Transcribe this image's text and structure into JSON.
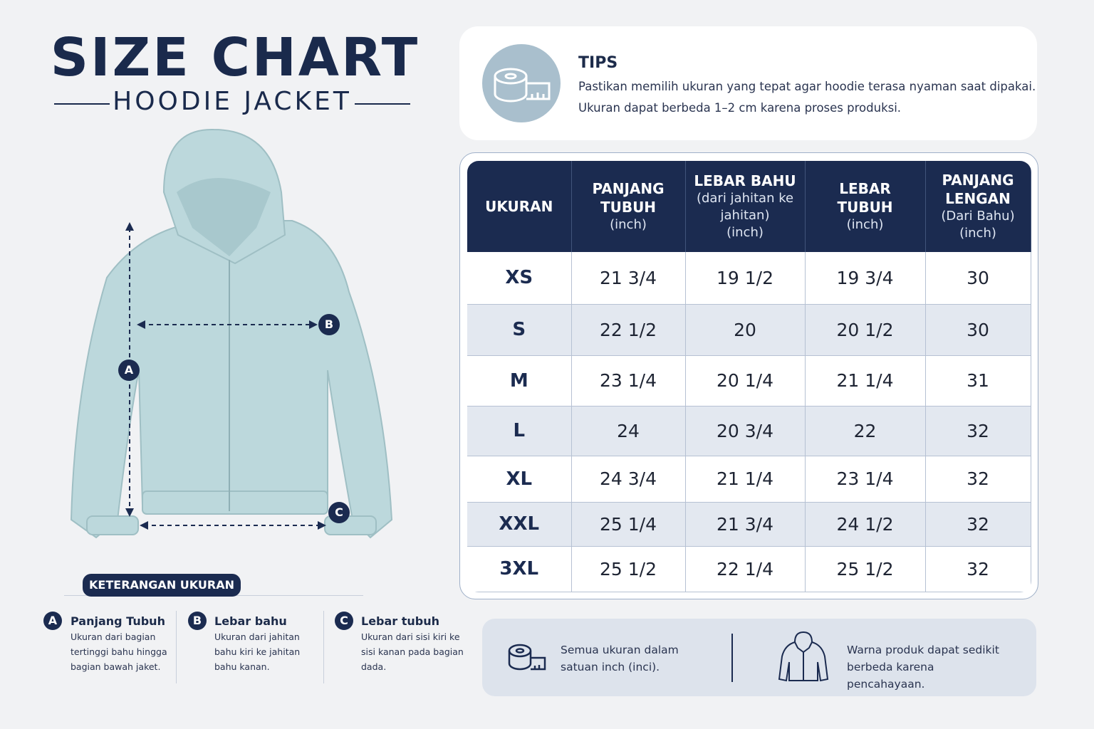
{
  "header": {
    "title": "SIZE CHART",
    "subtitle": "HOODIE JACKET"
  },
  "tips": {
    "title": "TIPS",
    "lines": [
      "Pastikan memilih ukuran yang tepat agar hoodie terasa nyaman saat dipakai.",
      "Ukuran dapat berbeda 1–2 cm karena proses produksi."
    ]
  },
  "table": {
    "headers": [
      {
        "title": "UKURAN",
        "notes": []
      },
      {
        "title": "PANJANG TUBUH",
        "notes": [
          "(inch)"
        ]
      },
      {
        "title": "LEBAR BAHU",
        "notes": [
          "(dari jahitan ke jahitan)",
          "(inch)"
        ]
      },
      {
        "title": "LEBAR TUBUH",
        "notes": [
          "(inch)"
        ]
      },
      {
        "title": "PANJANG LENGAN",
        "notes": [
          "(Dari Bahu)",
          "(inch)"
        ]
      }
    ],
    "rows": [
      [
        "XS",
        "21 3/4",
        "19 1/2",
        "19 3/4",
        "30"
      ],
      [
        "S",
        "22 1/2",
        "20",
        "20 1/2",
        "30"
      ],
      [
        "M",
        "23 1/4",
        "20 1/4",
        "21 1/4",
        "31"
      ],
      [
        "L",
        "24",
        "20 3/4",
        "22",
        "32"
      ],
      [
        "XL",
        "24 3/4",
        "21 1/4",
        "23 1/4",
        "32"
      ],
      [
        "XXL",
        "25 1/4",
        "21 3/4",
        "24 1/2",
        "32"
      ],
      [
        "3XL",
        "25 1/2",
        "22 1/4",
        "25 1/2",
        "32"
      ]
    ]
  },
  "legend": {
    "title": "KETERANGAN UKURAN",
    "items": [
      {
        "letter": "A",
        "name": "Panjang Tubuh",
        "desc": "Ukuran dari bagian tertinggi bahu hingga bagian bawah jaket."
      },
      {
        "letter": "B",
        "name": "Lebar bahu",
        "desc": "Ukuran dari jahitan bahu kiri ke jahitan bahu kanan."
      },
      {
        "letter": "C",
        "name": "Lebar tubuh",
        "desc": "Ukuran dari sisi kiri ke sisi kanan pada bagian dada."
      }
    ]
  },
  "footer": {
    "notes": [
      "Semua ukuran dalam satuan inch (inci).",
      "Warna produk dapat sedikit berbeda karena pencahayaan."
    ]
  }
}
